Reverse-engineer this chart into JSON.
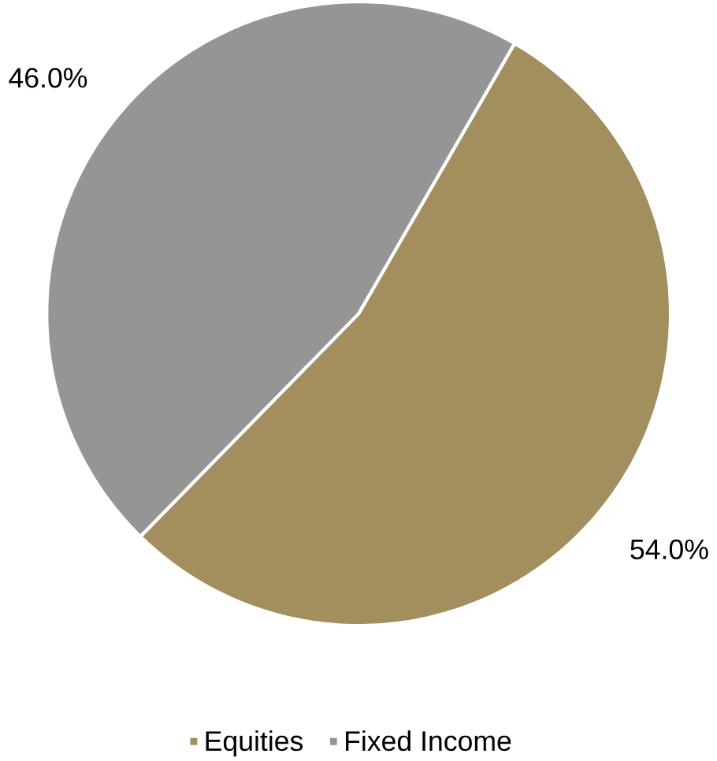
{
  "chart_data": {
    "type": "pie",
    "categories": [
      "Equities",
      "Fixed Income"
    ],
    "values": [
      54.0,
      46.0
    ],
    "colors": [
      "#a38f5e",
      "#959595"
    ],
    "value_labels": [
      "54.0%",
      "46.0%"
    ],
    "legend": "bottom"
  }
}
